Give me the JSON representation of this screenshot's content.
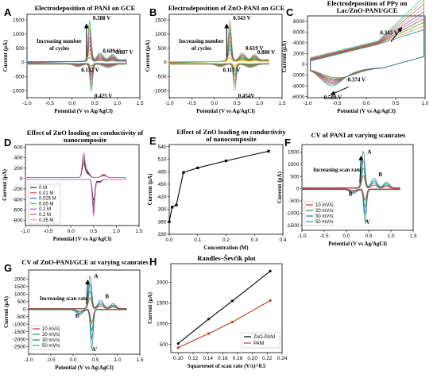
{
  "colors": {
    "cv": [
      "#1f77b4",
      "#ff7f0e",
      "#2ca02c",
      "#d62728",
      "#9467bd",
      "#8c564b",
      "#e377c2",
      "#7f7f7f",
      "#bcbd22",
      "#17becf"
    ],
    "rate": [
      "#d62728",
      "#1f9e4a",
      "#1f77b4",
      "#2a9d8f"
    ],
    "load": [
      "#000000",
      "#e41a1c",
      "#1f3cff",
      "#2ca02c",
      "#9933cc",
      "#8c564b",
      "#e07ab5"
    ],
    "lineE": "#000000",
    "lineH_zno": "#000000",
    "lineH_pani": "#c0392b",
    "arrow": "#000000",
    "redArrow": "#d62728"
  },
  "chart_data": [
    {
      "id": "A",
      "type": "line",
      "title": "Electrodeposition of PANI on GCE",
      "xlabel": "Potential (V vs Ag/AgCl)",
      "ylabel": "Current (μA)",
      "xlim": [
        -1.0,
        1.5
      ],
      "ylim": [
        -1250,
        1700
      ],
      "xticks": [
        "-1.0",
        "-0.5",
        "0.0",
        "0.5",
        "1.0",
        "1.5"
      ],
      "yticks": [
        "1500",
        "1000",
        "500",
        "0",
        "-500",
        "-1000"
      ],
      "cycles": 10,
      "peaks": [
        {
          "x": 0.388,
          "y": 1500,
          "label": "0.388 V"
        },
        {
          "x": 0.609,
          "y": 280,
          "label": "0.609 V"
        },
        {
          "x": 0.887,
          "y": 240,
          "label": "0.887 V"
        },
        {
          "x": 0.132,
          "y": -80,
          "label": "0.132 V"
        },
        {
          "x": 0.425,
          "y": -1000,
          "label": "0.425 V"
        }
      ],
      "annotations": [
        "Increasing number",
        "of cycles"
      ]
    },
    {
      "id": "B",
      "type": "line",
      "title": "Electrodeposition of ZnO-PANI on GCE",
      "xlabel": "Potential (V vs Ag/AgCl)",
      "ylabel": "Current (μA)",
      "xlim": [
        -1.0,
        1.5
      ],
      "ylim": [
        -1250,
        1700
      ],
      "xticks": [
        "-1.0",
        "-0.5",
        "0.0",
        "0.5",
        "1.0",
        "1.5"
      ],
      "yticks": [
        "1500",
        "1000",
        "500",
        "0",
        "-500",
        "-1000"
      ],
      "cycles": 10,
      "peaks": [
        {
          "x": 0.343,
          "y": 1500,
          "label": "0.343 V"
        },
        {
          "x": 0.619,
          "y": 380,
          "label": "0.619 V"
        },
        {
          "x": 0.88,
          "y": 240,
          "label": "0.880 V"
        },
        {
          "x": 0.117,
          "y": -90,
          "label": "0.117 V"
        },
        {
          "x": 0.454,
          "y": -1000,
          "label": "0.454V"
        }
      ],
      "annotations": [
        "Increasing number",
        "of cycles"
      ]
    },
    {
      "id": "C",
      "type": "line",
      "title": "Electrodeposition of PPy on Lac/ZnO-PANI/GCE",
      "xlabel": "Potential (V vs Ag/AgCl)",
      "ylabel": "Current (μA)",
      "xlim": [
        -1.0,
        1.0
      ],
      "ylim": [
        -6200,
        9000
      ],
      "xticks": [
        "-1.0",
        "-0.5",
        "0.0",
        "0.5",
        "1.0"
      ],
      "yticks": [
        "8000",
        "6000",
        "4000",
        "2000",
        "0",
        "-2000",
        "-4000",
        "-6000"
      ],
      "cycles": 10,
      "peaks": [
        {
          "x": 0.343,
          "y": 5500,
          "label": "0.343 V"
        },
        {
          "x": -0.374,
          "y": -2700,
          "label": "-0.374 V"
        },
        {
          "x": -0.589,
          "y": -4700,
          "label": "-0.589 V"
        }
      ]
    },
    {
      "id": "D",
      "type": "line",
      "title": "Effect of ZnO loading on conductivity of nanocomposite",
      "xlabel": "Potential (V vs Ag/AgCl)",
      "ylabel": "Current (μA)",
      "xlim": [
        -1.0,
        1.5
      ],
      "ylim": [
        -900,
        650
      ],
      "xticks": [
        "-1.0",
        "-0.5",
        "0.0",
        "0.5",
        "1.0",
        "1.5"
      ],
      "yticks": [
        "600",
        "400",
        "200",
        "0",
        "-200",
        "-400",
        "-600",
        "-800"
      ],
      "legend": [
        "0 M",
        "0.01 M",
        "0.025 M",
        "0.05 M",
        "0.1 M",
        "0.2 M",
        "0.35 M"
      ]
    },
    {
      "id": "E",
      "type": "line",
      "title": "Effect of ZnO loading on conductivity of nanocomposite",
      "xlabel": "Concentration (M)",
      "ylabel": "Current (μA)",
      "xlim": [
        0.0,
        0.4
      ],
      "ylim": [
        330,
        545
      ],
      "xticks": [
        "0.0",
        "0.1",
        "0.2",
        "0.3",
        "0.4"
      ],
      "yticks": [
        "540",
        "510",
        "480",
        "450",
        "420",
        "390",
        "360",
        "330"
      ],
      "x": [
        0.0,
        0.01,
        0.025,
        0.05,
        0.1,
        0.2,
        0.35
      ],
      "y": [
        360,
        395,
        400,
        478,
        489,
        506,
        529
      ]
    },
    {
      "id": "F",
      "type": "line",
      "title": "CV of PANI at varying scanrates",
      "xlabel": "Potential (V vs Ag/AgCl)",
      "ylabel": "Current (μA)",
      "xlim": [
        -1.0,
        1.5
      ],
      "ylim": [
        -1700,
        1800
      ],
      "xticks": [
        "-1.0",
        "-0.5",
        "0.0",
        "0.5",
        "1.0",
        "1.5"
      ],
      "yticks": [
        "1500",
        "1000",
        "500",
        "0",
        "-500",
        "-1000",
        "-1500"
      ],
      "legend": [
        "10 mV/s",
        "20 mV/s",
        "30 mV/s",
        "50 mV/s"
      ],
      "peak_labels": [
        "A",
        "B",
        "B'",
        "A'"
      ],
      "annotations": [
        "Increasing scan rate"
      ]
    },
    {
      "id": "G",
      "type": "line",
      "title": "CV of ZnO-PANI/GCE at varying scanrates",
      "xlabel": "Potential (V vs Ag/AgCl)",
      "ylabel": "Current (μA)",
      "xlim": [
        -1.0,
        1.5
      ],
      "ylim": [
        -3000,
        2600
      ],
      "xticks": [
        "-1.0",
        "-0.5",
        "0.0",
        "0.5",
        "1.0",
        "1.5"
      ],
      "yticks": [
        "2000",
        "1500",
        "1000",
        "500",
        "0",
        "-500",
        "-1000",
        "-1500",
        "-2000",
        "-2500"
      ],
      "legend": [
        "10 mV/s",
        "20 mV/s",
        "30 mV/s",
        "50 mV/s"
      ],
      "peak_labels": [
        "A",
        "B",
        "B'",
        "A'"
      ],
      "annotations": [
        "Increasing scan rate"
      ]
    },
    {
      "id": "H",
      "type": "line",
      "title": "Randles–Ševčík plot",
      "xlabel": "Squareroot of scan rate (V/s)^0.5",
      "ylabel": "Current (μA)",
      "xlim": [
        0.09,
        0.24
      ],
      "ylim": [
        300,
        2450
      ],
      "xticks": [
        "0.10",
        "0.12",
        "0.14",
        "0.16",
        "0.18",
        "0.20",
        "0.22",
        "0.24"
      ],
      "yticks": [
        "2000",
        "1500",
        "1000",
        "500"
      ],
      "series": [
        {
          "name": "ZnO-PANI",
          "x": [
            0.1,
            0.141,
            0.173,
            0.224
          ],
          "y": [
            520,
            1110,
            1550,
            2270
          ]
        },
        {
          "name": "PANI",
          "x": [
            0.1,
            0.141,
            0.173,
            0.224
          ],
          "y": [
            420,
            760,
            1040,
            1560
          ]
        }
      ]
    }
  ]
}
